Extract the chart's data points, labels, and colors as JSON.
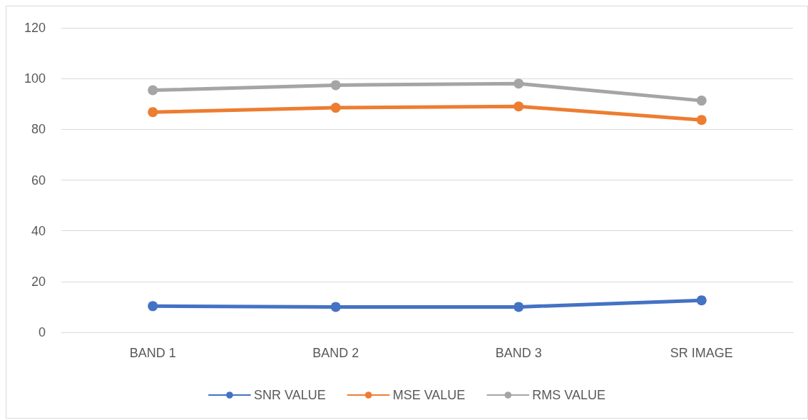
{
  "chart_data": {
    "type": "line",
    "categories": [
      "BAND 1",
      "BAND 2",
      "BAND 3",
      "SR IMAGE"
    ],
    "series": [
      {
        "name": "SNR VALUE",
        "color": "#4472c4",
        "values": [
          10.3,
          10.0,
          10.0,
          12.6
        ]
      },
      {
        "name": "MSE VALUE",
        "color": "#ed7d31",
        "values": [
          86.8,
          88.5,
          89.0,
          83.7
        ]
      },
      {
        "name": "RMS VALUE",
        "color": "#a5a5a5",
        "values": [
          95.4,
          97.4,
          98.0,
          91.3
        ]
      }
    ],
    "ylim": [
      0,
      120
    ],
    "yticks": [
      0,
      20,
      40,
      60,
      80,
      100,
      120
    ],
    "grid": "y",
    "legend": "bottom",
    "marker": "circle",
    "line_style": "solid"
  }
}
